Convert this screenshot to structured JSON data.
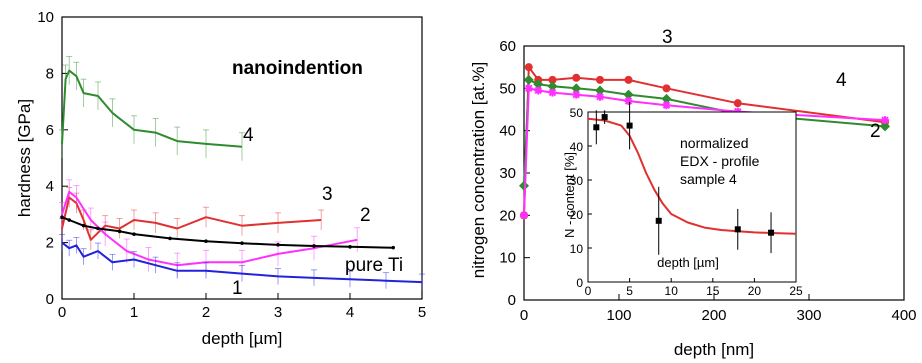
{
  "chart_data": [
    {
      "type": "line",
      "xlabel": "depth [µm]",
      "ylabel": "hardness [GPa]",
      "xlim": [
        0,
        5
      ],
      "ylim": [
        0,
        10
      ],
      "xticks": [
        "0",
        "1",
        "2",
        "3",
        "4",
        "5"
      ],
      "yticks": [
        "0",
        "2",
        "4",
        "6",
        "8",
        "10"
      ],
      "annotation": "nanoindention",
      "series": [
        {
          "name": "4",
          "color": "#2e8b2e",
          "x": [
            0.0,
            0.05,
            0.1,
            0.2,
            0.3,
            0.5,
            0.7,
            1.0,
            1.3,
            1.6,
            2.0,
            2.5
          ],
          "y": [
            5.5,
            7.8,
            8.1,
            7.9,
            7.3,
            7.2,
            6.6,
            6.0,
            5.9,
            5.6,
            5.5,
            5.4
          ]
        },
        {
          "name": "3",
          "color": "#e03030",
          "x": [
            0.0,
            0.1,
            0.2,
            0.3,
            0.4,
            0.6,
            0.8,
            1.0,
            1.3,
            1.6,
            2.0,
            2.5,
            3.0,
            3.6
          ],
          "y": [
            2.5,
            3.6,
            3.4,
            2.8,
            2.1,
            2.6,
            2.5,
            2.8,
            2.7,
            2.5,
            2.9,
            2.6,
            2.7,
            2.8
          ]
        },
        {
          "name": "2",
          "color": "#ff30ff",
          "x": [
            0.0,
            0.1,
            0.2,
            0.4,
            0.6,
            0.9,
            1.2,
            1.6,
            2.0,
            2.5,
            3.0,
            3.5,
            4.1
          ],
          "y": [
            3.0,
            3.8,
            3.6,
            2.8,
            2.3,
            1.7,
            1.4,
            1.2,
            1.3,
            1.3,
            1.6,
            1.8,
            2.1
          ]
        },
        {
          "name": "pure Ti",
          "color": "#000000",
          "x": [
            0.0,
            0.1,
            0.3,
            0.5,
            0.8,
            1.0,
            1.5,
            2.0,
            2.5,
            3.0,
            3.5,
            4.0,
            4.6
          ],
          "y": [
            2.9,
            2.8,
            2.6,
            2.5,
            2.4,
            2.3,
            2.15,
            2.05,
            1.98,
            1.92,
            1.88,
            1.85,
            1.82
          ]
        },
        {
          "name": "1",
          "color": "#2222dd",
          "x": [
            0.0,
            0.1,
            0.2,
            0.3,
            0.5,
            0.7,
            1.0,
            1.3,
            1.6,
            2.0,
            2.5,
            3.0,
            3.5,
            4.0,
            4.5,
            5.0
          ],
          "y": [
            2.0,
            1.8,
            1.9,
            1.5,
            1.7,
            1.3,
            1.4,
            1.2,
            1.0,
            1.0,
            0.9,
            0.8,
            0.75,
            0.7,
            0.65,
            0.6
          ]
        }
      ]
    },
    {
      "type": "line",
      "xlabel": "depth [nm]",
      "ylabel": "nitrogen concentration [at.%]",
      "xlim": [
        0,
        400
      ],
      "ylim": [
        0,
        60
      ],
      "xticks": [
        "0",
        "100",
        "200",
        "300",
        "400"
      ],
      "yticks": [
        "0",
        "10",
        "20",
        "30",
        "40",
        "50",
        "60"
      ],
      "series": [
        {
          "name": "3",
          "color": "#e03030",
          "x": [
            0,
            5,
            15,
            30,
            55,
            80,
            110,
            150,
            225,
            380
          ],
          "y": [
            20,
            55,
            52,
            52,
            52.5,
            52,
            52,
            50,
            46.5,
            42
          ]
        },
        {
          "name": "4",
          "color": "#2e8b2e",
          "x": [
            0,
            5,
            15,
            30,
            55,
            80,
            110,
            150,
            225,
            380
          ],
          "y": [
            27,
            52,
            51,
            50.5,
            50,
            49.5,
            48.5,
            47.5,
            44,
            41
          ]
        },
        {
          "name": "2",
          "color": "#ff30ff",
          "x": [
            0,
            5,
            15,
            30,
            55,
            80,
            110,
            150,
            225,
            380
          ],
          "y": [
            20,
            50,
            49.5,
            49,
            48.5,
            48,
            47,
            46,
            44.5,
            42.5
          ]
        }
      ],
      "inset": {
        "type": "scatter",
        "xlabel": "depth [µm]",
        "ylabel": "N - content [%]",
        "xlim": [
          0,
          25
        ],
        "ylim": [
          0,
          50
        ],
        "xticks": [
          "0",
          "5",
          "10",
          "15",
          "20",
          "25"
        ],
        "yticks": [
          "0",
          "10",
          "20",
          "30",
          "40",
          "50"
        ],
        "text": [
          "normalized",
          "EDX - profile",
          "sample 4"
        ],
        "points": {
          "x": [
            1,
            2,
            5,
            8.5,
            18,
            22
          ],
          "y": [
            45.5,
            48.5,
            46,
            18,
            15.5,
            14.5
          ]
        },
        "fit": {
          "color": "#e03030",
          "x": [
            0,
            2,
            4,
            5,
            6,
            7,
            8,
            9,
            10,
            12,
            14,
            16,
            18,
            20,
            22,
            25
          ],
          "y": [
            48,
            47.5,
            46,
            43,
            38,
            32,
            27,
            23,
            20,
            17.5,
            16,
            15.3,
            14.9,
            14.6,
            14.4,
            14.2
          ]
        }
      }
    }
  ]
}
